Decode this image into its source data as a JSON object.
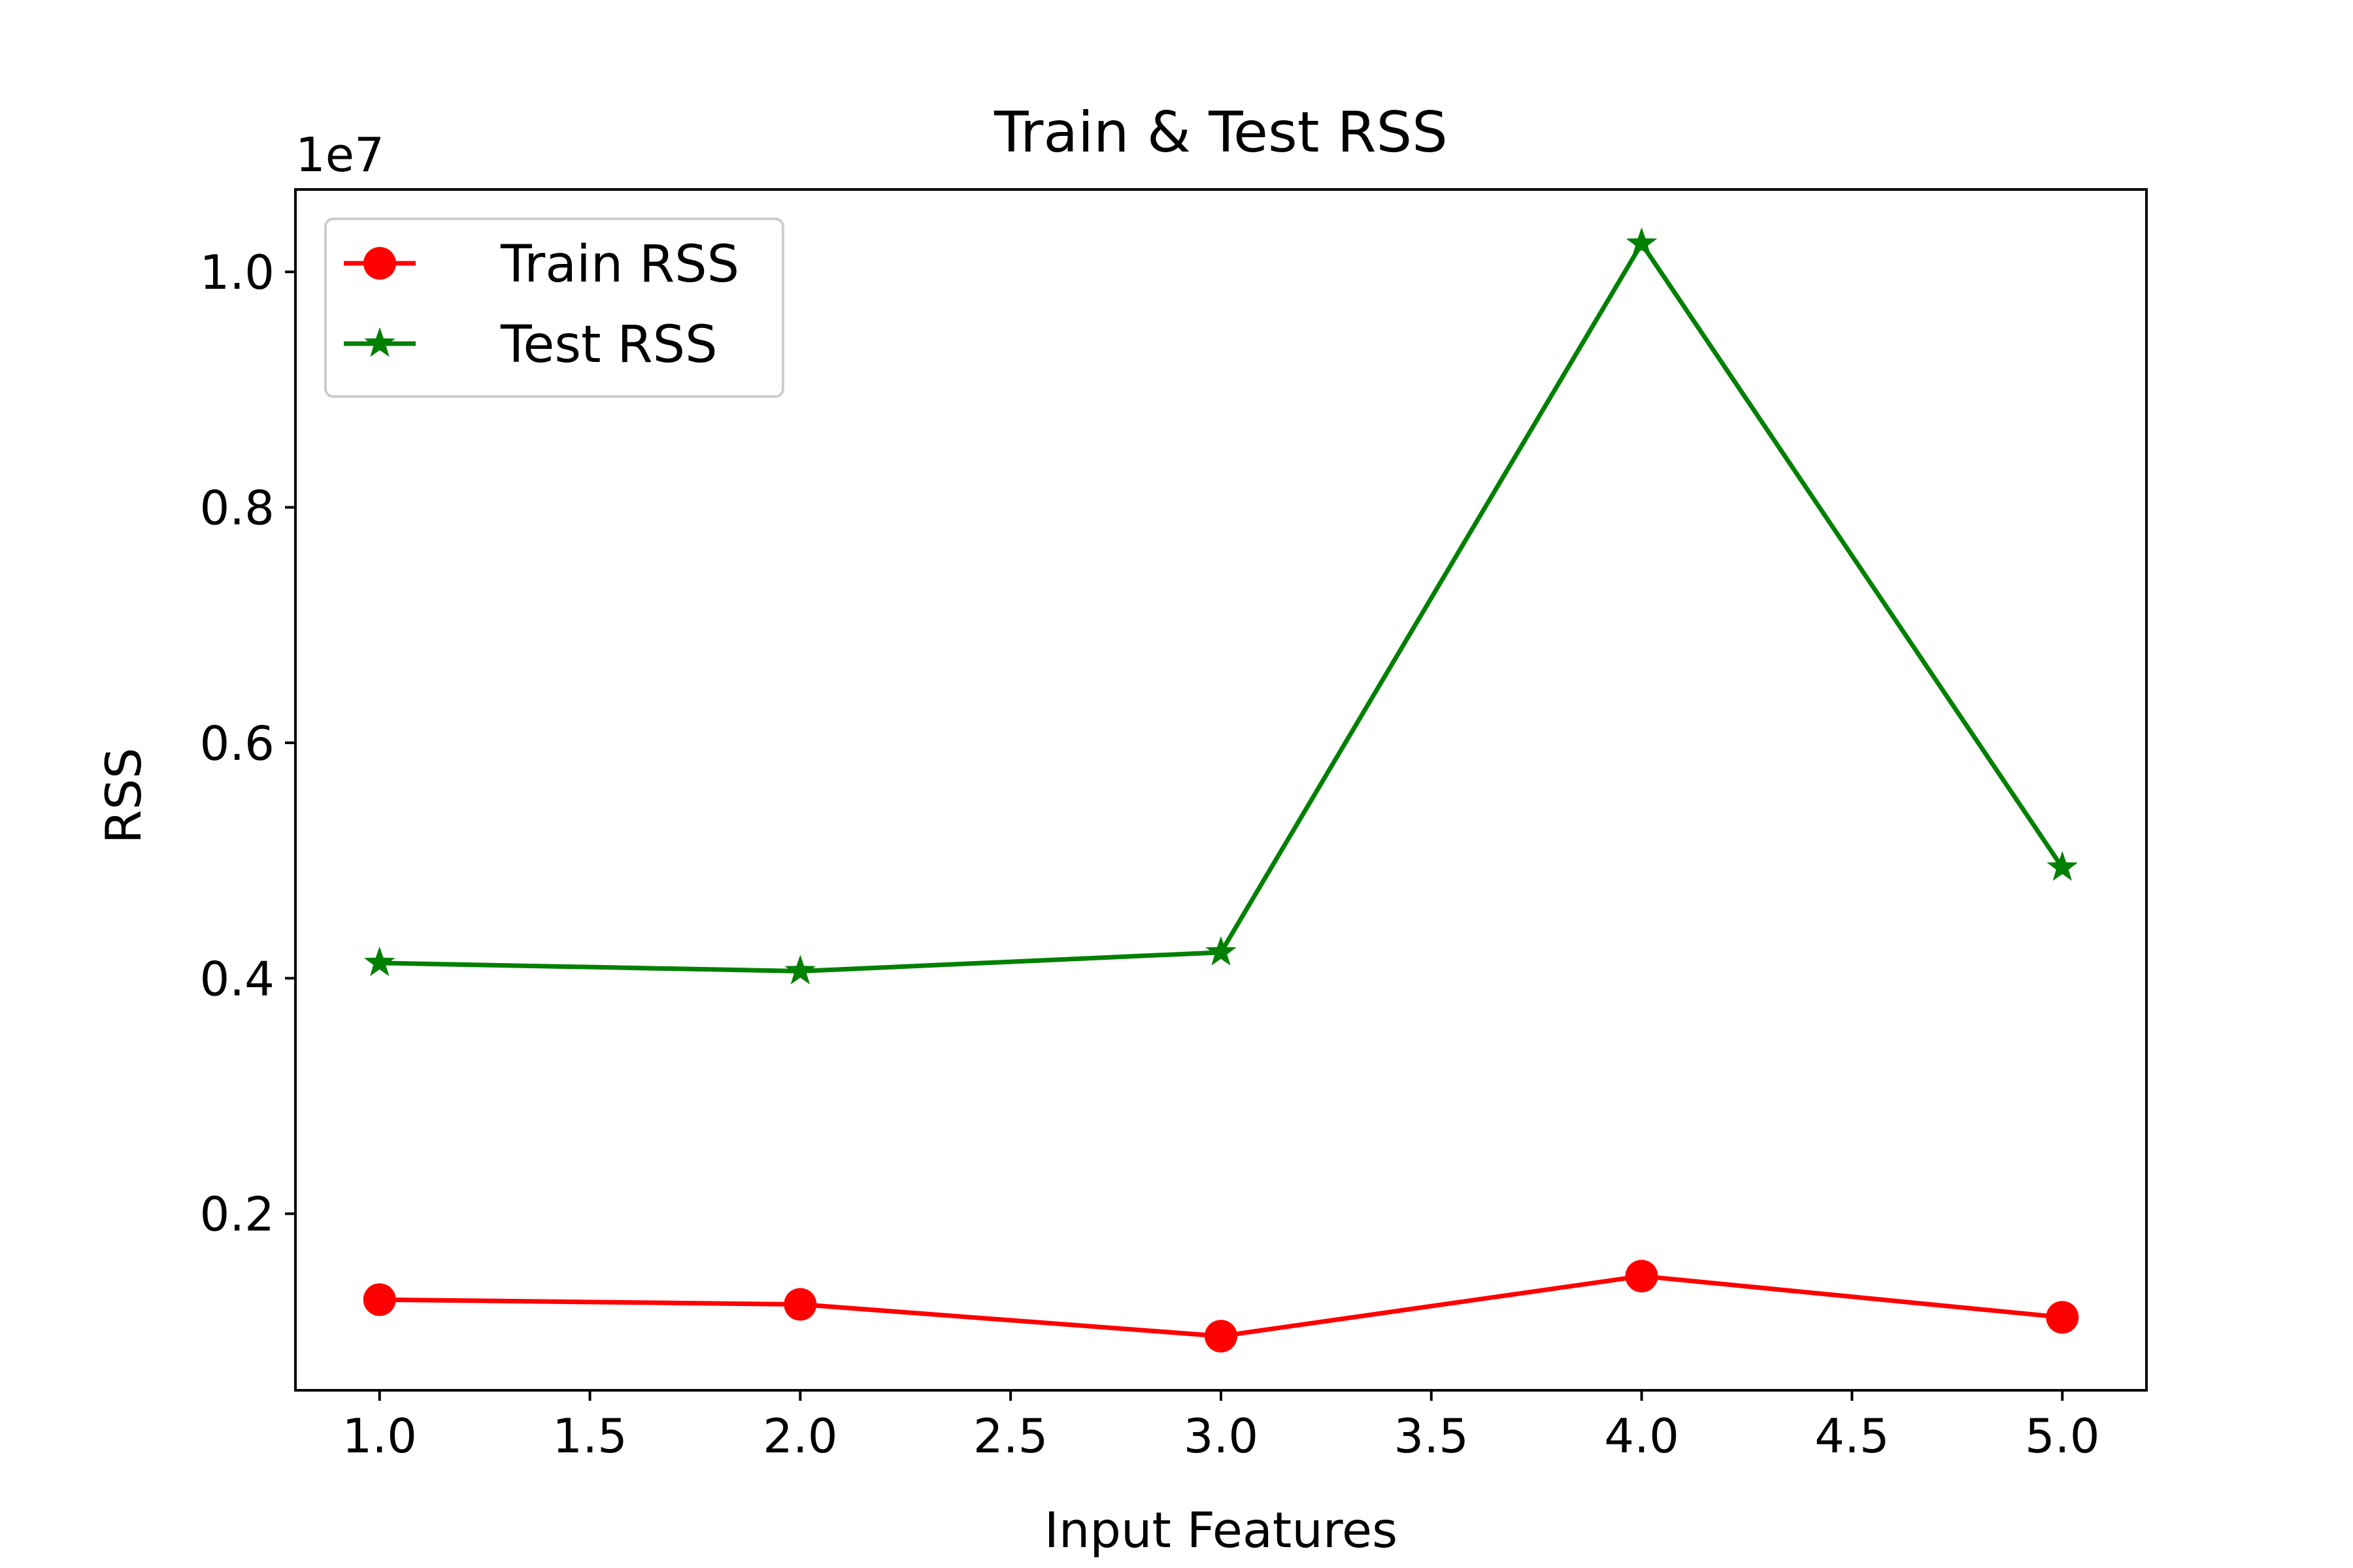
{
  "chart_data": {
    "type": "line",
    "title": "Train & Test RSS",
    "xlabel": "Input Features",
    "ylabel": "RSS",
    "y_offset_label": "1e7",
    "y_scale_factor": 10000000,
    "xlim": [
      0.8,
      5.2
    ],
    "ylim": [
      0.05,
      1.07
    ],
    "x_ticks": [
      1.0,
      1.5,
      2.0,
      2.5,
      3.0,
      3.5,
      4.0,
      4.5,
      5.0
    ],
    "x_tick_labels": [
      "1.0",
      "1.5",
      "2.0",
      "2.5",
      "3.0",
      "3.5",
      "4.0",
      "4.5",
      "5.0"
    ],
    "y_ticks": [
      0.2,
      0.4,
      0.6,
      0.8,
      1.0
    ],
    "y_tick_labels": [
      "0.2",
      "0.4",
      "0.6",
      "0.8",
      "1.0"
    ],
    "grid": false,
    "legend_position": "upper-left",
    "x": [
      1,
      2,
      3,
      4,
      5
    ],
    "series": [
      {
        "name": "Train RSS",
        "color": "#ff0000",
        "marker": "circle",
        "values": [
          0.127,
          0.123,
          0.096,
          0.147,
          0.112
        ]
      },
      {
        "name": "Test RSS",
        "color": "#008000",
        "marker": "star",
        "values": [
          0.413,
          0.406,
          0.422,
          1.024,
          0.494
        ]
      }
    ]
  }
}
